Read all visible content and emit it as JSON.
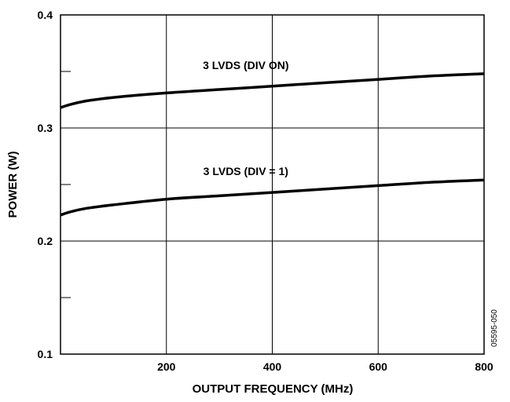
{
  "chart_data": {
    "type": "line",
    "xlabel": "OUTPUT FREQUENCY (MHz)",
    "ylabel": "POWER (W)",
    "xlim": [
      0,
      800
    ],
    "ylim": [
      0.1,
      0.4
    ],
    "x_ticks": [
      {
        "value": 200,
        "label": "200"
      },
      {
        "value": 400,
        "label": "400"
      },
      {
        "value": 600,
        "label": "600"
      },
      {
        "value": 800,
        "label": "800"
      }
    ],
    "y_ticks": [
      {
        "value": 0.1,
        "label": "0.1"
      },
      {
        "value": 0.2,
        "label": "0.2"
      },
      {
        "value": 0.3,
        "label": "0.3"
      },
      {
        "value": 0.4,
        "label": "0.4"
      }
    ],
    "grid": true,
    "series": [
      {
        "name": "3 LVDS (DIV ON)",
        "x": [
          0,
          20,
          50,
          100,
          200,
          300,
          400,
          500,
          600,
          700,
          800
        ],
        "y": [
          0.318,
          0.321,
          0.324,
          0.327,
          0.331,
          0.334,
          0.337,
          0.34,
          0.343,
          0.346,
          0.348
        ]
      },
      {
        "name": "3 LVDS (DIV = 1)",
        "x": [
          0,
          20,
          50,
          100,
          200,
          300,
          400,
          500,
          600,
          700,
          800
        ],
        "y": [
          0.223,
          0.226,
          0.229,
          0.232,
          0.237,
          0.24,
          0.243,
          0.246,
          0.249,
          0.252,
          0.254
        ]
      }
    ],
    "annotations": [
      {
        "text": "3 LVDS (DIV ON)",
        "series": 0,
        "at_x": 350
      },
      {
        "text": "3 LVDS (DIV = 1)",
        "series": 1,
        "at_x": 350
      }
    ],
    "figure_id": "05595-050"
  }
}
